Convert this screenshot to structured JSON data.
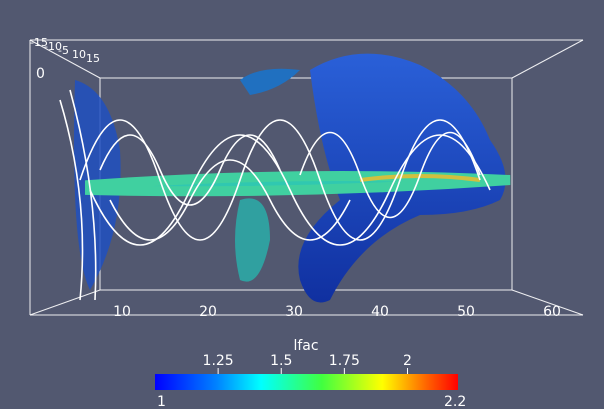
{
  "axes": {
    "x_labels": [
      10,
      20,
      30,
      40,
      50,
      60
    ],
    "left_label": "0",
    "corner_labels": [
      "-15",
      "-10",
      "-5",
      "10",
      "15"
    ]
  },
  "colorbar": {
    "title": "lfac",
    "range": [
      1,
      2.2
    ],
    "ticks": [
      1.25,
      1.5,
      1.75,
      2
    ]
  }
}
